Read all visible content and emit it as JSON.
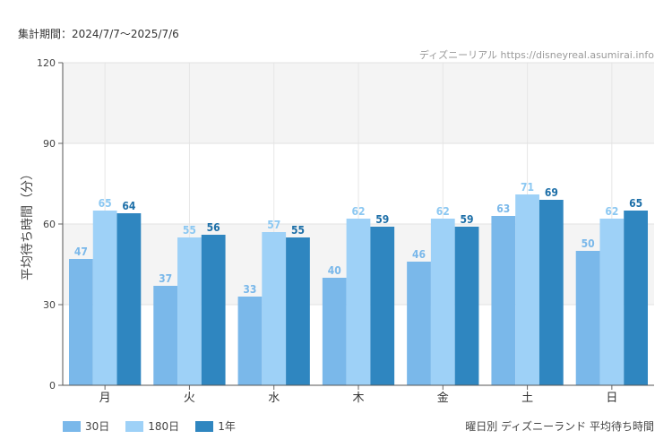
{
  "header": {
    "period": "集計期間：2024/7/7〜2025/7/6",
    "credit": "ディズニーリアル https://disneyreal.asumirai.info"
  },
  "caption": "曜日別 ディズニーランド 平均待ち時間",
  "colors": {
    "series_30": "#7ab8ea",
    "series_180": "#9ed1f7",
    "series_1y": "#2f86c0",
    "label_30": "#7ab8ea",
    "label_180": "#8cc8f2",
    "label_1y": "#1d6fa8"
  },
  "chart_data": {
    "type": "bar",
    "ylabel": "平均待ち時間（分）",
    "ylim": [
      0,
      120
    ],
    "yticks": [
      0,
      30,
      60,
      90,
      120
    ],
    "grid": true,
    "legend_position": "bottom-left",
    "categories": [
      "月",
      "火",
      "水",
      "木",
      "金",
      "土",
      "日"
    ],
    "series": [
      {
        "name": "30日",
        "values": [
          47,
          37,
          33,
          40,
          46,
          63,
          50
        ]
      },
      {
        "name": "180日",
        "values": [
          65,
          55,
          57,
          62,
          62,
          71,
          62
        ]
      },
      {
        "name": "1年",
        "values": [
          64,
          56,
          55,
          59,
          59,
          69,
          65
        ]
      }
    ]
  }
}
